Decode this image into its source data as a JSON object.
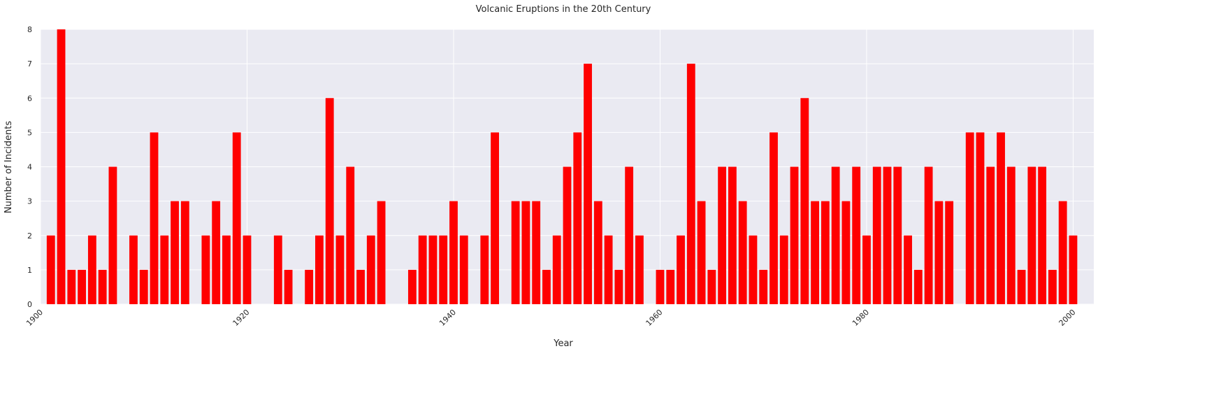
{
  "chart_data": {
    "type": "bar",
    "title": "Volcanic Eruptions in the 20th Century",
    "xlabel": "Year",
    "ylabel": "Number of Incidents",
    "xlim": [
      1900,
      2002
    ],
    "ylim": [
      0,
      8
    ],
    "x_ticks": [
      1900,
      1920,
      1940,
      1960,
      1980,
      2000
    ],
    "y_ticks": [
      0,
      1,
      2,
      3,
      4,
      5,
      6,
      7,
      8
    ],
    "grid": true,
    "bar_color": "#ff0000",
    "background_color": "#eaeaf2",
    "x": [
      1901,
      1902,
      1903,
      1904,
      1905,
      1906,
      1907,
      1909,
      1910,
      1911,
      1912,
      1913,
      1914,
      1916,
      1917,
      1918,
      1919,
      1920,
      1923,
      1924,
      1926,
      1927,
      1928,
      1929,
      1930,
      1931,
      1932,
      1933,
      1936,
      1937,
      1938,
      1939,
      1940,
      1941,
      1943,
      1944,
      1946,
      1947,
      1948,
      1949,
      1950,
      1951,
      1952,
      1953,
      1954,
      1955,
      1956,
      1957,
      1958,
      1960,
      1961,
      1962,
      1963,
      1964,
      1965,
      1966,
      1967,
      1968,
      1969,
      1970,
      1971,
      1972,
      1973,
      1974,
      1975,
      1976,
      1977,
      1978,
      1979,
      1980,
      1981,
      1982,
      1983,
      1984,
      1985,
      1986,
      1987,
      1988,
      1990,
      1991,
      1992,
      1993,
      1994,
      1995,
      1996,
      1997,
      1998,
      1999,
      2000
    ],
    "values": [
      2,
      8,
      1,
      1,
      2,
      1,
      4,
      2,
      1,
      5,
      2,
      3,
      3,
      2,
      3,
      2,
      5,
      2,
      2,
      1,
      1,
      2,
      6,
      2,
      4,
      1,
      2,
      3,
      1,
      2,
      2,
      2,
      3,
      2,
      2,
      5,
      3,
      3,
      3,
      1,
      2,
      4,
      5,
      7,
      3,
      2,
      1,
      4,
      2,
      1,
      1,
      2,
      7,
      3,
      1,
      4,
      4,
      3,
      2,
      1,
      5,
      2,
      4,
      6,
      3,
      3,
      4,
      3,
      4,
      2,
      4,
      4,
      4,
      2,
      1,
      4,
      3,
      3,
      5,
      5,
      4,
      5,
      4,
      1,
      4,
      4,
      1,
      3,
      2
    ]
  }
}
